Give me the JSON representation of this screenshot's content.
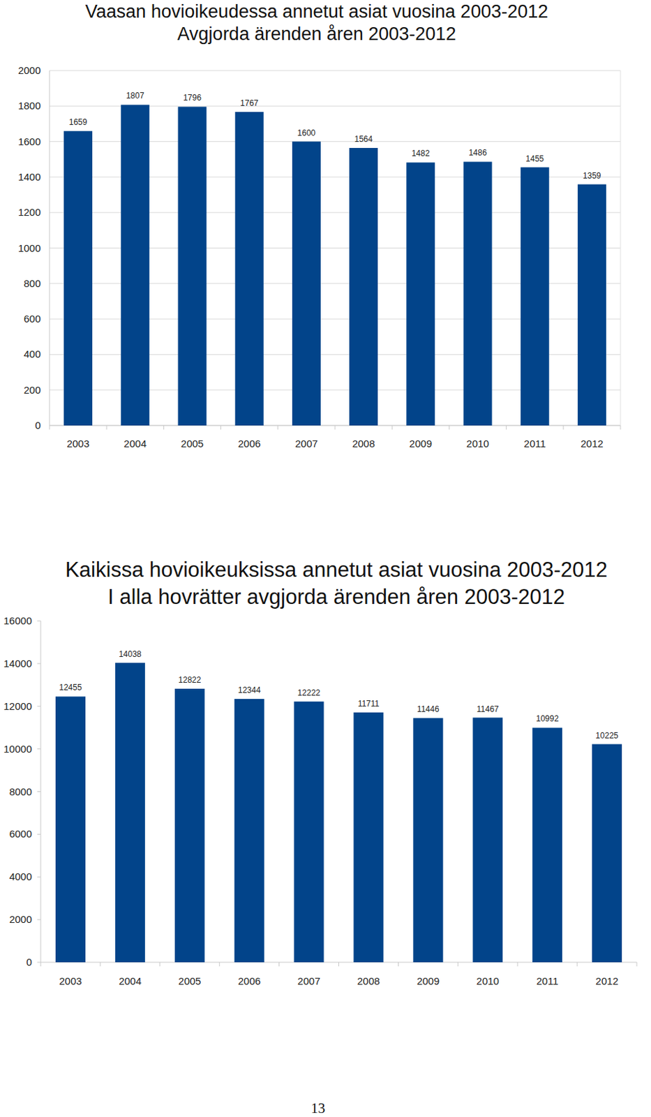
{
  "chart_data": [
    {
      "type": "bar",
      "title": "Vaasan hovioikeudessa annetut asiat vuosina 2003-2012",
      "subtitle": "Avgjorda ärenden åren 2003-2012",
      "categories": [
        "2003",
        "2004",
        "2005",
        "2006",
        "2007",
        "2008",
        "2009",
        "2010",
        "2011",
        "2012"
      ],
      "values": [
        1659,
        1807,
        1796,
        1767,
        1600,
        1564,
        1482,
        1486,
        1455,
        1359
      ],
      "color": "#02448a",
      "ylim": [
        0,
        2000
      ],
      "yticks": [
        0,
        200,
        400,
        600,
        800,
        1000,
        1200,
        1400,
        1600,
        1800,
        2000
      ],
      "grid": true,
      "data_labels": true
    },
    {
      "type": "bar",
      "title": "Kaikissa hovioikeuksissa annetut asiat vuosina 2003-2012",
      "subtitle": "I alla hovrätter avgjorda ärenden åren 2003-2012",
      "categories": [
        "2003",
        "2004",
        "2005",
        "2006",
        "2007",
        "2008",
        "2009",
        "2010",
        "2011",
        "2012"
      ],
      "values": [
        12455,
        14038,
        12822,
        12344,
        12222,
        11711,
        11446,
        11467,
        10992,
        10225
      ],
      "color": "#02448a",
      "ylim": [
        0,
        16000
      ],
      "yticks": [
        0,
        2000,
        4000,
        6000,
        8000,
        10000,
        12000,
        14000,
        16000
      ],
      "grid": false,
      "data_labels": true
    }
  ],
  "page": {
    "number": "13"
  }
}
